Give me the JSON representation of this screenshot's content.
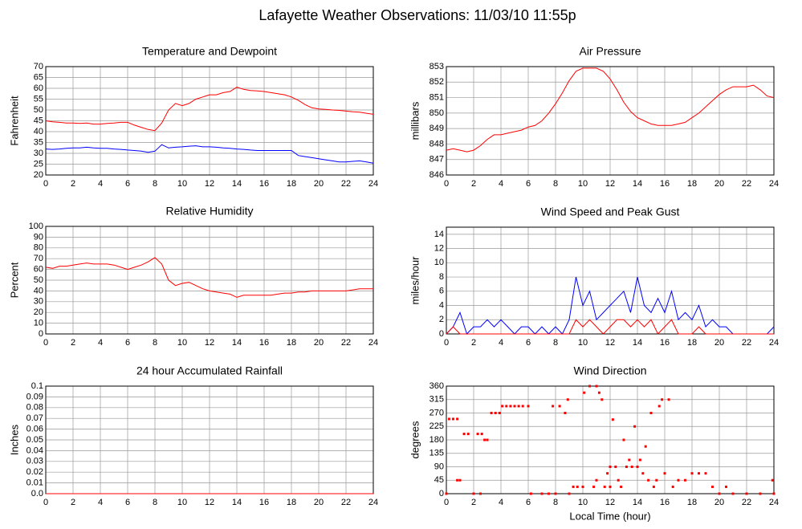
{
  "title": "Lafayette Weather Observations: 11/03/10 11:55p",
  "chart_data": [
    {
      "type": "line",
      "title": "Temperature and Dewpoint",
      "ylabel": "Fahrenheit",
      "grid": true,
      "xlim": [
        0,
        24
      ],
      "ylim": [
        20,
        70
      ],
      "xticks": [
        0,
        2,
        4,
        6,
        8,
        10,
        12,
        14,
        16,
        18,
        20,
        22,
        24
      ],
      "yticks": [
        20,
        25,
        30,
        35,
        40,
        45,
        50,
        55,
        60,
        65,
        70
      ],
      "x": [
        0,
        0.5,
        1,
        1.5,
        2,
        2.5,
        3,
        3.5,
        4,
        4.5,
        5,
        5.5,
        6,
        6.5,
        7,
        7.5,
        8,
        8.5,
        9,
        9.5,
        10,
        10.5,
        11,
        11.5,
        12,
        12.5,
        13,
        13.5,
        14,
        14.5,
        15,
        15.5,
        16,
        16.5,
        17,
        17.5,
        18,
        18.5,
        19,
        19.5,
        20,
        20.5,
        21,
        21.5,
        22,
        22.5,
        23,
        23.5,
        24
      ],
      "series": [
        {
          "color": "#ff0000",
          "values": [
            45,
            44.5,
            44.3,
            44,
            44,
            43.8,
            44,
            43.5,
            43.5,
            43.8,
            44,
            44.3,
            44.3,
            43,
            42,
            41,
            40.5,
            44,
            50,
            53,
            52,
            53,
            55,
            56,
            57,
            57,
            58,
            58.5,
            60.5,
            59.5,
            59,
            58.8,
            58.5,
            58,
            57.5,
            57,
            56,
            54.5,
            52.5,
            51,
            50.5,
            50.3,
            50,
            49.8,
            49.5,
            49.2,
            49,
            48.5,
            48
          ]
        },
        {
          "color": "#0000ff",
          "values": [
            32,
            31.8,
            32,
            32.3,
            32.5,
            32.5,
            32.8,
            32.5,
            32.3,
            32.3,
            32,
            31.8,
            31.5,
            31.3,
            31,
            30.5,
            31,
            34,
            32.5,
            32.8,
            33,
            33.3,
            33.5,
            33,
            33,
            32.8,
            32.5,
            32.3,
            32,
            31.8,
            31.5,
            31.3,
            31.3,
            31.3,
            31.3,
            31.3,
            31.3,
            29,
            28.5,
            28,
            27.5,
            27,
            26.5,
            26,
            26,
            26.3,
            26.5,
            26,
            25.5
          ]
        }
      ]
    },
    {
      "type": "line",
      "title": "Air Pressure",
      "ylabel": "millibars",
      "grid": true,
      "xlim": [
        0,
        24
      ],
      "ylim": [
        846,
        853
      ],
      "xticks": [
        0,
        2,
        4,
        6,
        8,
        10,
        12,
        14,
        16,
        18,
        20,
        22,
        24
      ],
      "yticks": [
        846,
        847,
        848,
        849,
        850,
        851,
        852,
        853
      ],
      "x": [
        0,
        0.5,
        1,
        1.5,
        2,
        2.5,
        3,
        3.5,
        4,
        4.5,
        5,
        5.5,
        6,
        6.5,
        7,
        7.5,
        8,
        8.5,
        9,
        9.5,
        10,
        10.5,
        11,
        11.5,
        12,
        12.5,
        13,
        13.5,
        14,
        14.5,
        15,
        15.5,
        16,
        16.5,
        17,
        17.5,
        18,
        18.5,
        19,
        19.5,
        20,
        20.5,
        21,
        21.5,
        22,
        22.5,
        23,
        23.5,
        24
      ],
      "series": [
        {
          "color": "#ff0000",
          "values": [
            847.6,
            847.7,
            847.6,
            847.5,
            847.6,
            847.9,
            848.3,
            848.6,
            848.6,
            848.7,
            848.8,
            848.9,
            849.1,
            849.2,
            849.5,
            850,
            850.6,
            851.3,
            852.1,
            852.7,
            852.9,
            852.9,
            852.9,
            852.7,
            852.2,
            851.5,
            850.7,
            850.1,
            849.7,
            849.5,
            849.3,
            849.2,
            849.2,
            849.2,
            849.3,
            849.4,
            849.7,
            850,
            850.4,
            850.8,
            851.2,
            851.5,
            851.7,
            851.7,
            851.7,
            851.8,
            851.5,
            851.1,
            851
          ]
        }
      ]
    },
    {
      "type": "line",
      "title": "Relative Humidity",
      "ylabel": "Percent",
      "grid": true,
      "xlim": [
        0,
        24
      ],
      "ylim": [
        0,
        100
      ],
      "xticks": [
        0,
        2,
        4,
        6,
        8,
        10,
        12,
        14,
        16,
        18,
        20,
        22,
        24
      ],
      "yticks": [
        0,
        10,
        20,
        30,
        40,
        50,
        60,
        70,
        80,
        90,
        100
      ],
      "x": [
        0,
        0.5,
        1,
        1.5,
        2,
        2.5,
        3,
        3.5,
        4,
        4.5,
        5,
        5.5,
        6,
        6.5,
        7,
        7.5,
        8,
        8.5,
        9,
        9.5,
        10,
        10.5,
        11,
        11.5,
        12,
        12.5,
        13,
        13.5,
        14,
        14.5,
        15,
        15.5,
        16,
        16.5,
        17,
        17.5,
        18,
        18.5,
        19,
        19.5,
        20,
        20.5,
        21,
        21.5,
        22,
        22.5,
        23,
        23.5,
        24
      ],
      "series": [
        {
          "color": "#ff0000",
          "values": [
            62,
            61,
            63,
            63,
            64,
            65,
            66,
            65,
            65,
            65,
            64,
            62,
            60,
            62,
            64,
            67,
            71,
            65,
            50,
            45,
            47,
            48,
            45,
            42,
            40,
            39,
            38,
            37,
            34,
            36,
            36,
            36,
            36,
            36,
            37,
            38,
            38,
            39,
            39,
            40,
            40,
            40,
            40,
            40,
            40,
            41,
            42,
            42,
            42
          ]
        }
      ]
    },
    {
      "type": "line",
      "title": "Wind Speed and Peak Gust",
      "ylabel": "miles/hour",
      "grid": true,
      "xlim": [
        0,
        24
      ],
      "ylim": [
        0,
        15
      ],
      "xticks": [
        0,
        2,
        4,
        6,
        8,
        10,
        12,
        14,
        16,
        18,
        20,
        22,
        24
      ],
      "yticks": [
        0,
        2,
        4,
        6,
        8,
        10,
        12,
        14
      ],
      "x": [
        0,
        0.5,
        1,
        1.5,
        2,
        2.5,
        3,
        3.5,
        4,
        4.5,
        5,
        5.5,
        6,
        6.5,
        7,
        7.5,
        8,
        8.5,
        9,
        9.5,
        10,
        10.5,
        11,
        11.5,
        12,
        12.5,
        13,
        13.5,
        14,
        14.5,
        15,
        15.5,
        16,
        16.5,
        17,
        17.5,
        18,
        18.5,
        19,
        19.5,
        20,
        20.5,
        21,
        21.5,
        22,
        22.5,
        23,
        23.5,
        24
      ],
      "series": [
        {
          "color": "#0000ff",
          "values": [
            0,
            1,
            3,
            0,
            1,
            1,
            2,
            1,
            2,
            1,
            0,
            1,
            1,
            0,
            1,
            0,
            1,
            0,
            2,
            8,
            4,
            6,
            2,
            3,
            4,
            5,
            6,
            3,
            8,
            4,
            3,
            5,
            3,
            6,
            2,
            3,
            2,
            4,
            1,
            2,
            1,
            1,
            0,
            0,
            0,
            0,
            0,
            0,
            1
          ]
        },
        {
          "color": "#ff0000",
          "values": [
            0,
            1,
            0,
            0,
            0,
            0,
            0,
            0,
            0,
            0,
            0,
            0,
            0,
            0,
            0,
            0,
            0,
            0,
            0,
            2,
            1,
            2,
            1,
            0,
            1,
            2,
            2,
            1,
            2,
            1,
            2,
            0,
            1,
            2,
            0,
            0,
            0,
            1,
            0,
            0,
            0,
            0,
            0,
            0,
            0,
            0,
            0,
            0,
            0
          ]
        }
      ]
    },
    {
      "type": "line",
      "title": "24 hour Accumulated Rainfall",
      "ylabel": "Inches",
      "grid": true,
      "xlim": [
        0,
        24
      ],
      "ylim": [
        0,
        0.1
      ],
      "xticks": [
        0,
        2,
        4,
        6,
        8,
        10,
        12,
        14,
        16,
        18,
        20,
        22,
        24
      ],
      "yticks": [
        {
          "value": 0,
          "label": "0.0"
        },
        0.01,
        0.02,
        0.03,
        0.04,
        0.05,
        0.06,
        0.07,
        0.08,
        0.09,
        {
          "value": 0.1,
          "label": "0.1"
        }
      ],
      "x": [
        0,
        24
      ],
      "series": [
        {
          "color": "#ff0000",
          "values": [
            0,
            0
          ]
        }
      ]
    },
    {
      "type": "scatter",
      "title": "Wind Direction",
      "ylabel": "degrees",
      "xlabel": "Local Time (hour)",
      "grid": true,
      "xlim": [
        0,
        24
      ],
      "ylim": [
        0,
        360
      ],
      "xticks": [
        0,
        2,
        4,
        6,
        8,
        10,
        12,
        14,
        16,
        18,
        20,
        22,
        24
      ],
      "yticks": [
        0,
        45,
        90,
        135,
        180,
        225,
        270,
        315,
        360
      ],
      "series": [
        {
          "color": "#ff0000",
          "x": [
            0,
            0.2,
            0.5,
            0.8,
            0.8,
            1,
            1.3,
            1.6,
            2,
            2.3,
            2.6,
            2.8,
            3,
            2.5,
            3.3,
            3.6,
            3.9,
            4.1,
            4.4,
            4.7,
            5,
            5.3,
            5.6,
            6,
            6.2,
            7,
            7.5,
            7.8,
            8,
            8.3,
            8.7,
            8.9,
            9,
            9.3,
            9.6,
            10,
            10.1,
            10.5,
            10.8,
            11,
            11,
            11.2,
            11.4,
            11.6,
            11.8,
            12,
            12,
            12.2,
            12.4,
            12.6,
            12.8,
            13,
            13.2,
            13.4,
            13.6,
            13.8,
            14,
            14.2,
            14.4,
            14.6,
            14.8,
            15,
            15.2,
            15.4,
            15.6,
            15.8,
            16,
            16.3,
            16.6,
            17,
            17.5,
            18,
            18.5,
            19,
            19.5,
            20,
            20.5,
            21,
            22,
            23,
            23.9,
            24
          ],
          "values": [
            0,
            250,
            250,
            250,
            45,
            45,
            200,
            200,
            0,
            200,
            200,
            180,
            180,
            0,
            270,
            270,
            270,
            293,
            293,
            293,
            293,
            293,
            293,
            293,
            0,
            0,
            0,
            293,
            0,
            293,
            270,
            315,
            0,
            23,
            23,
            23,
            338,
            360,
            23,
            360,
            45,
            338,
            315,
            23,
            68,
            90,
            23,
            248,
            90,
            45,
            23,
            180,
            90,
            113,
            90,
            225,
            90,
            113,
            68,
            158,
            45,
            270,
            23,
            45,
            293,
            315,
            68,
            315,
            23,
            45,
            45,
            68,
            68,
            68,
            23,
            0,
            23,
            0,
            0,
            0,
            45,
            0
          ]
        }
      ]
    }
  ]
}
